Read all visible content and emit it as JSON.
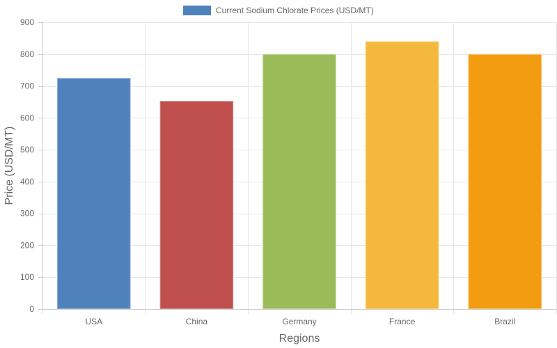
{
  "chart_data": {
    "type": "bar",
    "categories": [
      "USA",
      "China",
      "Germany",
      "France",
      "Brazil"
    ],
    "series": [
      {
        "name": "Current Sodium Chlorate Prices (USD/MT)",
        "values": [
          725,
          653,
          800,
          840,
          800
        ]
      }
    ],
    "colors": [
      "#4f81bd",
      "#c0504d",
      "#9bbb59",
      "#f4b83d",
      "#f39c12"
    ],
    "legend_color": "#4f81bd",
    "xlabel": "Regions",
    "ylabel": "Price (USD/MT)",
    "ylim": [
      0,
      900
    ],
    "yticks": [
      0,
      100,
      200,
      300,
      400,
      500,
      600,
      700,
      800,
      900
    ],
    "grid": true,
    "legend_position": "top-center"
  }
}
